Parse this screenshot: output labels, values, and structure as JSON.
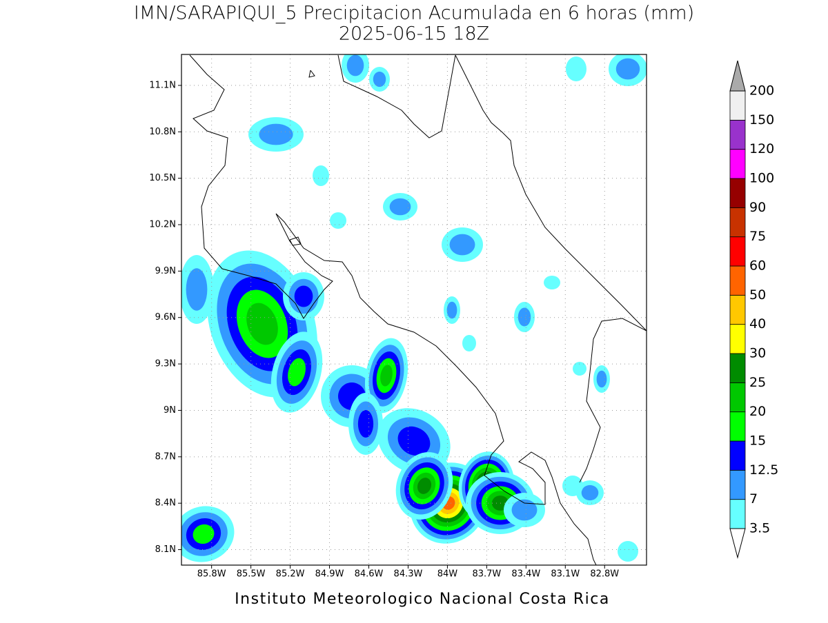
{
  "map": {
    "title": "IMN/SARAPIQUI_5 Precipitacion Acumulada en 6 horas (mm)",
    "subtitle": "2025-06-15 18Z",
    "footer": "Instituto Meteorologico Nacional Costa Rica",
    "xlim": [
      -86.03,
      -82.48
    ],
    "ylim": [
      8.0,
      11.3
    ],
    "xticks": [
      {
        "value": -85.8,
        "label": "85.8W"
      },
      {
        "value": -85.5,
        "label": "85.5W"
      },
      {
        "value": -85.2,
        "label": "85.2W"
      },
      {
        "value": -84.9,
        "label": "84.9W"
      },
      {
        "value": -84.6,
        "label": "84.6W"
      },
      {
        "value": -84.3,
        "label": "84.3W"
      },
      {
        "value": -84.0,
        "label": "84W"
      },
      {
        "value": -83.7,
        "label": "83.7W"
      },
      {
        "value": -83.4,
        "label": "83.4W"
      },
      {
        "value": -83.1,
        "label": "83.1W"
      },
      {
        "value": -82.8,
        "label": "82.8W"
      }
    ],
    "yticks": [
      {
        "value": 8.1,
        "label": "8.1N"
      },
      {
        "value": 8.4,
        "label": "8.4N"
      },
      {
        "value": 8.7,
        "label": "8.7N"
      },
      {
        "value": 9.0,
        "label": "9N"
      },
      {
        "value": 9.3,
        "label": "9.3N"
      },
      {
        "value": 9.6,
        "label": "9.6N"
      },
      {
        "value": 9.9,
        "label": "9.9N"
      },
      {
        "value": 10.2,
        "label": "10.2N"
      },
      {
        "value": 10.5,
        "label": "10.5N"
      },
      {
        "value": 10.8,
        "label": "10.8N"
      },
      {
        "value": 11.1,
        "label": "11.1N"
      }
    ],
    "grid": true,
    "colorbar": {
      "levels": [
        3.5,
        7,
        12.5,
        15,
        20,
        25,
        30,
        40,
        50,
        60,
        75,
        90,
        100,
        120,
        150,
        200
      ],
      "colors": [
        "#66ffff",
        "#3399ff",
        "#0000ff",
        "#00ff00",
        "#00c800",
        "#008c00",
        "#ffff00",
        "#ffc800",
        "#ff6400",
        "#ff0000",
        "#c83200",
        "#960000",
        "#ff00ff",
        "#9932cc",
        "#f0f0f0"
      ],
      "under_color": "#ffffff",
      "over_color": "#aaaaaa"
    }
  }
}
